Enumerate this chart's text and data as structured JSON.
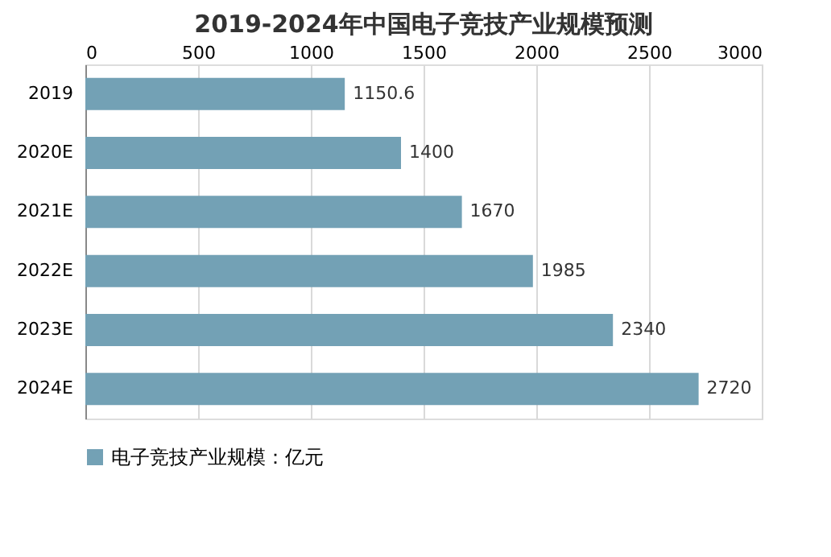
{
  "chart_data": {
    "type": "bar",
    "orientation": "horizontal",
    "title": "2019-2024年中国电子竞技产业规模预测",
    "categories": [
      "2019",
      "2020E",
      "2021E",
      "2022E",
      "2023E",
      "2024E"
    ],
    "series": [
      {
        "name": "电子竞技产业规模：亿元",
        "color": "#73a1b5",
        "values": [
          1150.6,
          1400,
          1670,
          1985,
          2340,
          2720
        ]
      }
    ],
    "xlim": [
      0,
      3000
    ],
    "xticks": [
      0,
      500,
      1000,
      1500,
      2000,
      2500,
      3000
    ],
    "grid": "x",
    "legend": "bottom",
    "data_labels": true
  }
}
